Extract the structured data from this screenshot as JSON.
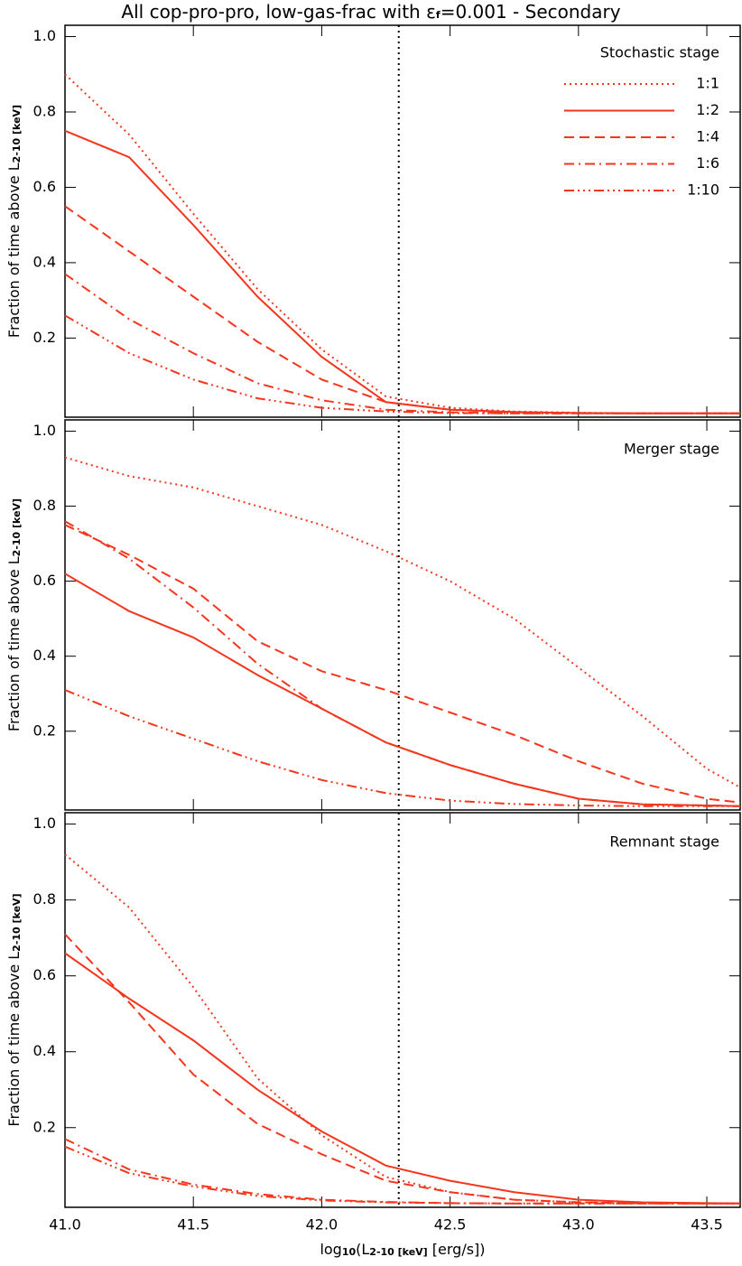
{
  "chart_data": [
    {
      "type": "line",
      "title": [
        "All cop-pro-pro, low-gas-frac with ",
        "ε",
        "f",
        "=0.001 - Secondary"
      ],
      "y_label": [
        "Fraction of time above L",
        "2-10 [keV]"
      ],
      "legend_title": "Stochastic stage",
      "xlim": [
        41,
        43.63
      ],
      "ylim": [
        -0.01,
        1.03
      ],
      "xticks": [
        41,
        41.5,
        42,
        42.5,
        43,
        43.5
      ],
      "yticks": [
        0.2,
        0.4,
        0.6,
        0.8,
        {
          "value": 1,
          "label": "1.0"
        }
      ],
      "vline": 42.3,
      "x": [
        41,
        41.25,
        41.5,
        41.75,
        42,
        42.25,
        42.5,
        42.75,
        43,
        43.25,
        43.5,
        43.63
      ],
      "series": [
        {
          "name": "1:1",
          "color": "#f5351c",
          "dash": "dotted",
          "values": [
            0.9,
            0.74,
            0.53,
            0.33,
            0.17,
            0.045,
            0.015,
            0.005,
            0.002,
            0,
            0,
            0
          ]
        },
        {
          "name": "1:2",
          "color": "#f5351c",
          "dash": "solid",
          "values": [
            0.75,
            0.68,
            0.5,
            0.31,
            0.15,
            0.03,
            0.01,
            0.004,
            0.001,
            0,
            0,
            0
          ]
        },
        {
          "name": "1:4",
          "color": "#f5351c",
          "dash": "dashed",
          "values": [
            0.55,
            0.43,
            0.31,
            0.19,
            0.09,
            0.03,
            0.01,
            0.003,
            0.001,
            0,
            0,
            0
          ]
        },
        {
          "name": "1:6",
          "color": "#f5351c",
          "dash": "dashdot",
          "values": [
            0.37,
            0.25,
            0.16,
            0.08,
            0.035,
            0.01,
            0.003,
            0,
            0,
            0,
            0,
            0
          ]
        },
        {
          "name": "1:10",
          "color": "#f5351c",
          "dash": "dashdotdotdot",
          "values": [
            0.26,
            0.16,
            0.09,
            0.04,
            0.015,
            0.005,
            0.001,
            0,
            0,
            0,
            0,
            0
          ]
        }
      ]
    },
    {
      "type": "line",
      "y_label": [
        "Fraction of time above L",
        "2-10 [keV]"
      ],
      "annotation": "Merger stage",
      "xlim": [
        41,
        43.63
      ],
      "ylim": [
        -0.01,
        1.03
      ],
      "xticks": [
        41,
        41.5,
        42,
        42.5,
        43,
        43.5
      ],
      "yticks": [
        0.2,
        0.4,
        0.6,
        0.8,
        {
          "value": 1,
          "label": "1.0"
        }
      ],
      "vline": 42.3,
      "x": [
        41,
        41.25,
        41.5,
        41.75,
        42,
        42.25,
        42.5,
        42.75,
        43,
        43.25,
        43.5,
        43.63
      ],
      "series": [
        {
          "color": "#f5351c",
          "dash": "dotted",
          "values": [
            0.93,
            0.88,
            0.85,
            0.8,
            0.75,
            0.68,
            0.6,
            0.5,
            0.37,
            0.24,
            0.1,
            0.05
          ]
        },
        {
          "color": "#f5351c",
          "dash": "solid",
          "values": [
            0.62,
            0.52,
            0.45,
            0.35,
            0.26,
            0.17,
            0.11,
            0.06,
            0.02,
            0.005,
            0.002,
            0
          ]
        },
        {
          "color": "#f5351c",
          "dash": "dashed",
          "values": [
            0.75,
            0.67,
            0.58,
            0.44,
            0.36,
            0.31,
            0.25,
            0.19,
            0.12,
            0.06,
            0.02,
            0.01
          ]
        },
        {
          "color": "#f5351c",
          "dash": "dashdot",
          "values": [
            0.76,
            0.66,
            0.53,
            0.38,
            0.26,
            0.17,
            0.11,
            0.06,
            0.02,
            0.005,
            0.002,
            0
          ]
        },
        {
          "color": "#f5351c",
          "dash": "dashdotdotdot",
          "values": [
            0.31,
            0.24,
            0.18,
            0.12,
            0.07,
            0.035,
            0.015,
            0.006,
            0.002,
            0,
            0,
            0
          ]
        }
      ]
    },
    {
      "type": "line",
      "y_label": [
        "Fraction of time above L",
        "2-10 [keV]"
      ],
      "x_label": [
        "log",
        "10",
        "(L",
        "2-10 [keV]",
        " [erg/s])"
      ],
      "annotation": "Remnant stage",
      "xlim": [
        41,
        43.63
      ],
      "ylim": [
        -0.01,
        1.03
      ],
      "xticks": [
        {
          "value": 41,
          "label": "41.0"
        },
        41.5,
        {
          "value": 42,
          "label": "42.0"
        },
        42.5,
        {
          "value": 43,
          "label": "43.0"
        },
        43.5
      ],
      "yticks": [
        0.2,
        0.4,
        0.6,
        0.8,
        {
          "value": 1,
          "label": "1.0"
        }
      ],
      "vline": 42.3,
      "x": [
        41,
        41.25,
        41.5,
        41.75,
        42,
        42.25,
        42.5,
        42.75,
        43,
        43.25,
        43.5,
        43.63
      ],
      "series": [
        {
          "color": "#f5351c",
          "dash": "dotted",
          "values": [
            0.92,
            0.78,
            0.57,
            0.33,
            0.18,
            0.07,
            0.03,
            0.01,
            0.003,
            0,
            0,
            0
          ]
        },
        {
          "color": "#f5351c",
          "dash": "solid",
          "values": [
            0.66,
            0.54,
            0.43,
            0.3,
            0.19,
            0.1,
            0.06,
            0.03,
            0.01,
            0.003,
            0.001,
            0
          ]
        },
        {
          "color": "#f5351c",
          "dash": "dashed",
          "values": [
            0.71,
            0.53,
            0.34,
            0.21,
            0.13,
            0.06,
            0.03,
            0.01,
            0.003,
            0.001,
            0,
            0
          ]
        },
        {
          "color": "#f5351c",
          "dash": "dashdot",
          "values": [
            0.17,
            0.09,
            0.05,
            0.025,
            0.01,
            0.004,
            0.001,
            0,
            0,
            0,
            0,
            0
          ]
        },
        {
          "color": "#f5351c",
          "dash": "dashdotdotdot",
          "values": [
            0.15,
            0.08,
            0.045,
            0.02,
            0.008,
            0.003,
            0.001,
            0,
            0,
            0,
            0,
            0
          ]
        }
      ]
    }
  ]
}
